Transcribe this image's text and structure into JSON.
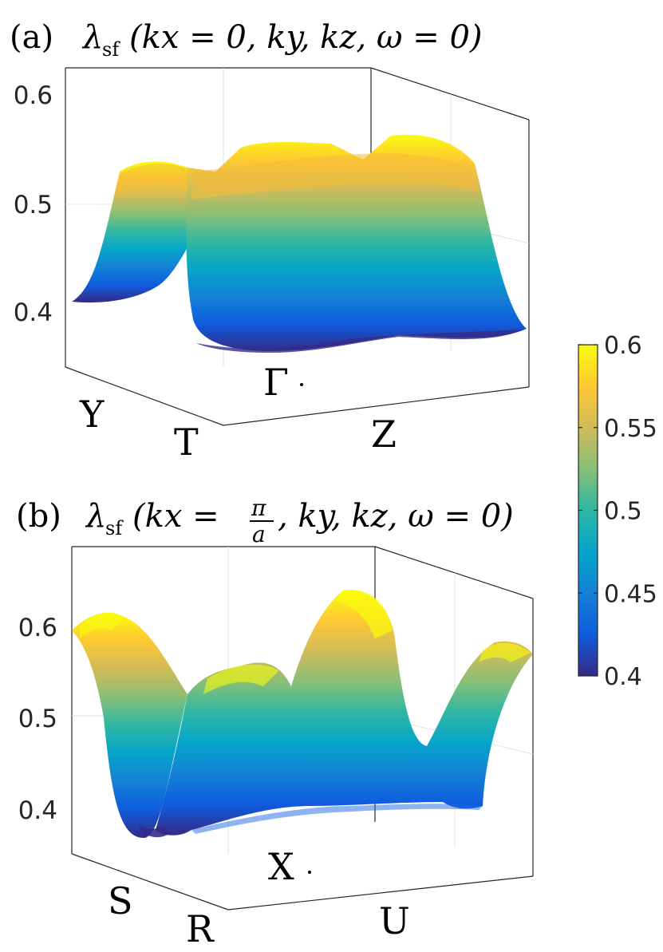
{
  "chart_data": [
    {
      "type": "surface",
      "panel_label": "(a)",
      "title": "λsf(kx = 0, ky, kz, ω = 0)",
      "title_parts": {
        "lambda": "λ",
        "sub": "sf",
        "args": "(kx = 0, ky, kz, ω = 0)"
      },
      "zlim": [
        0.35,
        0.6
      ],
      "z_ticks": [
        "0.4",
        "0.5",
        "0.6"
      ],
      "k_points": {
        "corner_left": "Y",
        "corner_front": "T",
        "center": "Γ",
        "right": "Z"
      },
      "grid": true,
      "z_range_observed": [
        0.36,
        0.59
      ],
      "along_left_edge": {
        "from": "Y",
        "to": "T",
        "values": [
          0.41,
          0.42,
          0.45,
          0.5,
          0.53,
          0.525,
          0.52,
          0.53,
          0.54,
          0.545
        ]
      },
      "along_front_edge": {
        "from": "T",
        "to": "Z",
        "values": [
          0.38,
          0.37,
          0.365,
          0.37,
          0.38,
          0.375,
          0.37,
          0.365,
          0.37,
          0.39
        ]
      },
      "along_back_ridge": {
        "values": [
          0.545,
          0.53,
          0.575,
          0.565,
          0.58,
          0.58,
          0.56,
          0.545,
          0.58,
          0.57
        ]
      }
    },
    {
      "type": "surface",
      "panel_label": "(b)",
      "title": "λsf(kx = π/a, ky, kz, ω = 0)",
      "title_parts": {
        "lambda": "λ",
        "sub": "sf",
        "pre": "(kx = ",
        "num": "π",
        "den": "a",
        "post": ", ky, kz, ω = 0)"
      },
      "zlim": [
        0.35,
        0.65
      ],
      "z_ticks": [
        "0.4",
        "0.5",
        "0.6"
      ],
      "k_points": {
        "corner_left": "S",
        "corner_front": "R",
        "center": "X",
        "right": "U"
      },
      "grid": true,
      "z_range_observed": [
        0.37,
        0.63
      ],
      "along_left_edge": {
        "from": "S",
        "to": "R",
        "values": [
          0.595,
          0.6,
          0.58,
          0.52,
          0.45,
          0.39,
          0.37
        ]
      },
      "along_front_edge": {
        "from": "R",
        "to": "U",
        "values": [
          0.39,
          0.41,
          0.42,
          0.42,
          0.42,
          0.43,
          0.42,
          0.41,
          0.4
        ]
      },
      "peaks": [
        0.61,
        0.59,
        0.63,
        0.6
      ]
    }
  ],
  "colorbar": {
    "ticks": [
      "0.4",
      "0.45",
      "0.5",
      "0.55",
      "0.6"
    ],
    "range": [
      0.4,
      0.6
    ],
    "colormap": "parula",
    "colors": [
      "#352a87",
      "#0f5cdd",
      "#1481d6",
      "#06a4ca",
      "#2eb7a4",
      "#87bf77",
      "#d1bb59",
      "#fec832",
      "#f9fb0e"
    ]
  }
}
